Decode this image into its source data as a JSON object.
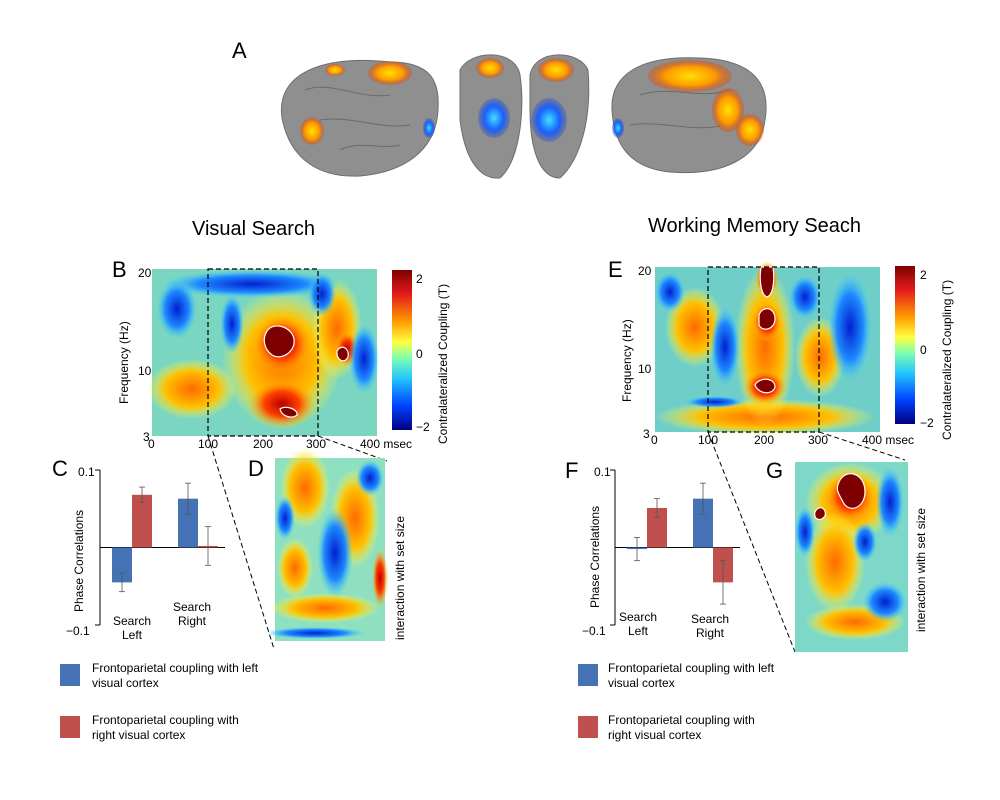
{
  "figure": {
    "panel_letters": {
      "A": "A",
      "B": "B",
      "C": "C",
      "D": "D",
      "E": "E",
      "F": "F",
      "G": "G"
    },
    "left_title": "Visual Search",
    "right_title": "Working Memory Seach",
    "tf_axes": {
      "ylabel": "Frequency (Hz)",
      "yticks": [
        "20",
        "10",
        "3"
      ],
      "xticks": [
        "0",
        "100",
        "200",
        "300",
        "400 msec"
      ]
    },
    "colorbar": {
      "label": "Contralateralized Coupling (T)",
      "ticks": [
        "2",
        "0",
        "−2"
      ]
    },
    "inset_label": "interaction with set size",
    "legend": {
      "left_visual": "Frontoparietal coupling with left visual cortex",
      "right_visual": "Frontoparietal coupling with right visual cortex"
    },
    "colors": {
      "blue": "#4472b4",
      "red": "#c0504d"
    }
  },
  "chart_data": [
    {
      "type": "bar",
      "panel": "C",
      "ylabel": "Phase Correlations",
      "ytick_labels": [
        "0.1",
        "−0.1"
      ],
      "ylim": [
        -0.1,
        0.1
      ],
      "categories": [
        "Search Left",
        "Search Right"
      ],
      "series": [
        {
          "name": "Frontoparietal coupling with left visual cortex",
          "values": [
            -0.045,
            0.063
          ],
          "errors": [
            0.012,
            0.02
          ]
        },
        {
          "name": "Frontoparietal coupling with right visual cortex",
          "values": [
            0.068,
            0.002
          ],
          "errors": [
            0.01,
            0.025
          ]
        }
      ]
    },
    {
      "type": "bar",
      "panel": "F",
      "ylabel": "Phase Correlations",
      "ytick_labels": [
        "0.1",
        "−0.1"
      ],
      "ylim": [
        -0.1,
        0.1
      ],
      "categories": [
        "Search Left",
        "Search Right"
      ],
      "series": [
        {
          "name": "Frontoparietal coupling with left visual cortex",
          "values": [
            -0.002,
            0.063
          ],
          "errors": [
            0.015,
            0.02
          ]
        },
        {
          "name": "Frontoparietal coupling with right visual cortex",
          "values": [
            0.051,
            -0.045
          ],
          "errors": [
            0.012,
            0.028
          ]
        }
      ]
    }
  ]
}
